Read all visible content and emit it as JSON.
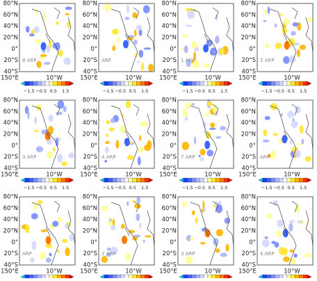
{
  "lat_labels": [
    "80°N",
    "60°N",
    "40°N",
    "20°N",
    "0°",
    "20°S",
    "40°S"
  ],
  "lon_labels": [
    "150°E",
    "10°W"
  ],
  "colorbar_ticks": [
    "−1.5",
    "−0.5",
    "0.5",
    "1.5"
  ],
  "panels": [
    {
      "label": "8 ARP"
    },
    {
      "label": "ARP"
    },
    {
      "label": "1 ARP"
    },
    {
      "label": "2 ARP"
    },
    {
      "label": "3 ARP"
    },
    {
      "label": "4 ARP"
    },
    {
      "label": "7 ARP"
    },
    {
      "label": "ARP"
    },
    {
      "label": "ARP"
    },
    {
      "label": "2 ARP"
    },
    {
      "label": "3 ARP"
    },
    {
      "label": "4 ARP"
    }
  ]
}
